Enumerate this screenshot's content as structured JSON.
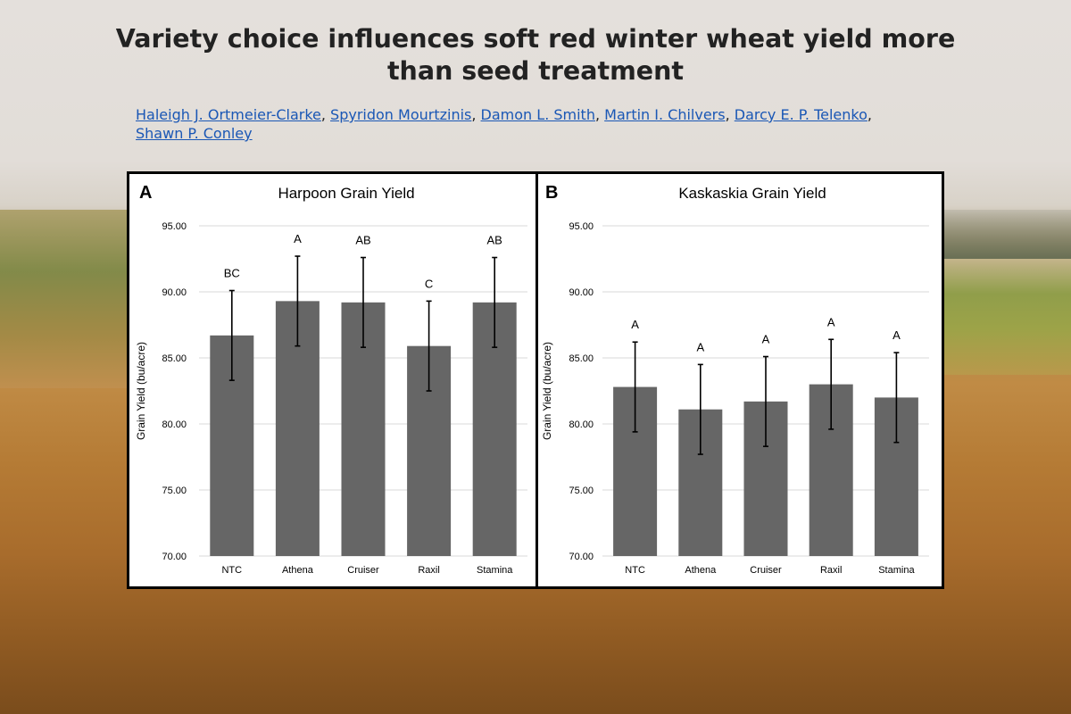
{
  "header": {
    "title": "Variety choice influences soft red winter wheat yield more than seed treatment",
    "authors": [
      "Haleigh J. Ortmeier-Clarke",
      "Spyridon Mourtzinis",
      "Damon L. Smith",
      "Martin I. Chilvers",
      "Darcy E. P. Telenko",
      "Shawn P. Conley"
    ]
  },
  "colors": {
    "bar": "#666666",
    "grid": "#d9d9d9",
    "link": "#1a57b5"
  },
  "chart_data": [
    {
      "type": "bar",
      "panel_label": "A",
      "title": "Harpoon Grain Yield",
      "xlabel": "",
      "ylabel": "Grain Yield (bu/acre)",
      "ylim": [
        70,
        95
      ],
      "yticks": [
        "70.00",
        "75.00",
        "80.00",
        "85.00",
        "90.00",
        "95.00"
      ],
      "grid": true,
      "categories": [
        "NTC",
        "Athena",
        "Cruiser",
        "Raxil",
        "Stamina"
      ],
      "values": [
        86.7,
        89.3,
        89.2,
        85.9,
        89.2
      ],
      "error": [
        3.4,
        3.4,
        3.4,
        3.4,
        3.4
      ],
      "letters": [
        "BC",
        "A",
        "AB",
        "C",
        "AB"
      ]
    },
    {
      "type": "bar",
      "panel_label": "B",
      "title": "Kaskaskia Grain Yield",
      "xlabel": "",
      "ylabel": "Grain Yield (bu/acre)",
      "ylim": [
        70,
        95
      ],
      "yticks": [
        "70.00",
        "75.00",
        "80.00",
        "85.00",
        "90.00",
        "95.00"
      ],
      "grid": true,
      "categories": [
        "NTC",
        "Athena",
        "Cruiser",
        "Raxil",
        "Stamina"
      ],
      "values": [
        82.8,
        81.1,
        81.7,
        83.0,
        82.0
      ],
      "error": [
        3.4,
        3.4,
        3.4,
        3.4,
        3.4
      ],
      "letters": [
        "A",
        "A",
        "A",
        "A",
        "A"
      ]
    }
  ]
}
